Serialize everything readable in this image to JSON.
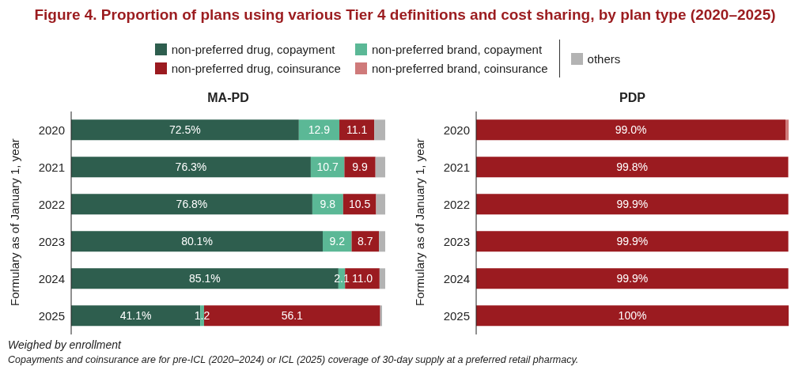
{
  "chart_data": [
    {
      "type": "bar",
      "orientation": "horizontal",
      "stacked": true,
      "title": "Figure 4. Proportion of plans using various Tier 4 definitions and cost sharing, by plan type (2020–2025)",
      "subtitle": "MA-PD",
      "ylabel": "Formulary as of January 1, year",
      "legend": "top",
      "categories": [
        "2020",
        "2021",
        "2022",
        "2023",
        "2024",
        "2025"
      ],
      "series": [
        {
          "name": "non-preferred drug, copayment",
          "color": "#2e5e4e",
          "values": [
            72.5,
            76.3,
            76.8,
            80.1,
            85.1,
            41.1
          ],
          "value_labels": [
            "72.5%",
            "76.3%",
            "76.8%",
            "80.1%",
            "85.1%",
            "41.1%"
          ]
        },
        {
          "name": "non-preferred brand, copayment",
          "color": "#5bb896",
          "values": [
            12.9,
            10.7,
            9.8,
            9.2,
            2.1,
            1.2
          ],
          "value_labels": [
            "12.9",
            "10.7",
            "9.8",
            "9.2",
            "2.1",
            "1.2"
          ]
        },
        {
          "name": "non-preferred drug, coinsurance",
          "color": "#9b1b20",
          "values": [
            11.1,
            9.9,
            10.5,
            8.7,
            11.0,
            56.1
          ],
          "value_labels": [
            "11.1",
            "9.9",
            "10.5",
            "8.7",
            "11.0",
            "56.1"
          ]
        },
        {
          "name": "non-preferred brand, coinsurance",
          "color": "#cf7a7a",
          "values": [
            0,
            0,
            0,
            0,
            0,
            0
          ]
        },
        {
          "name": "others",
          "color": "#b3b3b3",
          "values": [
            3.5,
            3.1,
            2.9,
            2.0,
            1.8,
            0.6
          ]
        }
      ],
      "annotations": [
        "Weighed by enrollment",
        "Copayments and coinsurance are for pre-ICL (2020–2024) or ICL (2025) coverage of 30-day supply at a preferred retail pharmacy."
      ]
    },
    {
      "type": "bar",
      "orientation": "horizontal",
      "stacked": true,
      "title": "PDP",
      "ylabel": "Formulary as of January 1, year",
      "categories": [
        "2020",
        "2021",
        "2022",
        "2023",
        "2024",
        "2025"
      ],
      "series": [
        {
          "color": "#9b1b20",
          "values": [
            99.0,
            99.8,
            99.9,
            99.9,
            99.9,
            100
          ],
          "value_labels": [
            "99.0%",
            "99.8%",
            "99.9%",
            "99.9%",
            "99.9%",
            "100%"
          ]
        },
        {
          "color": "#cf7a7a",
          "values": [
            1.0,
            0.2,
            null,
            null,
            null,
            0
          ]
        }
      ]
    }
  ]
}
